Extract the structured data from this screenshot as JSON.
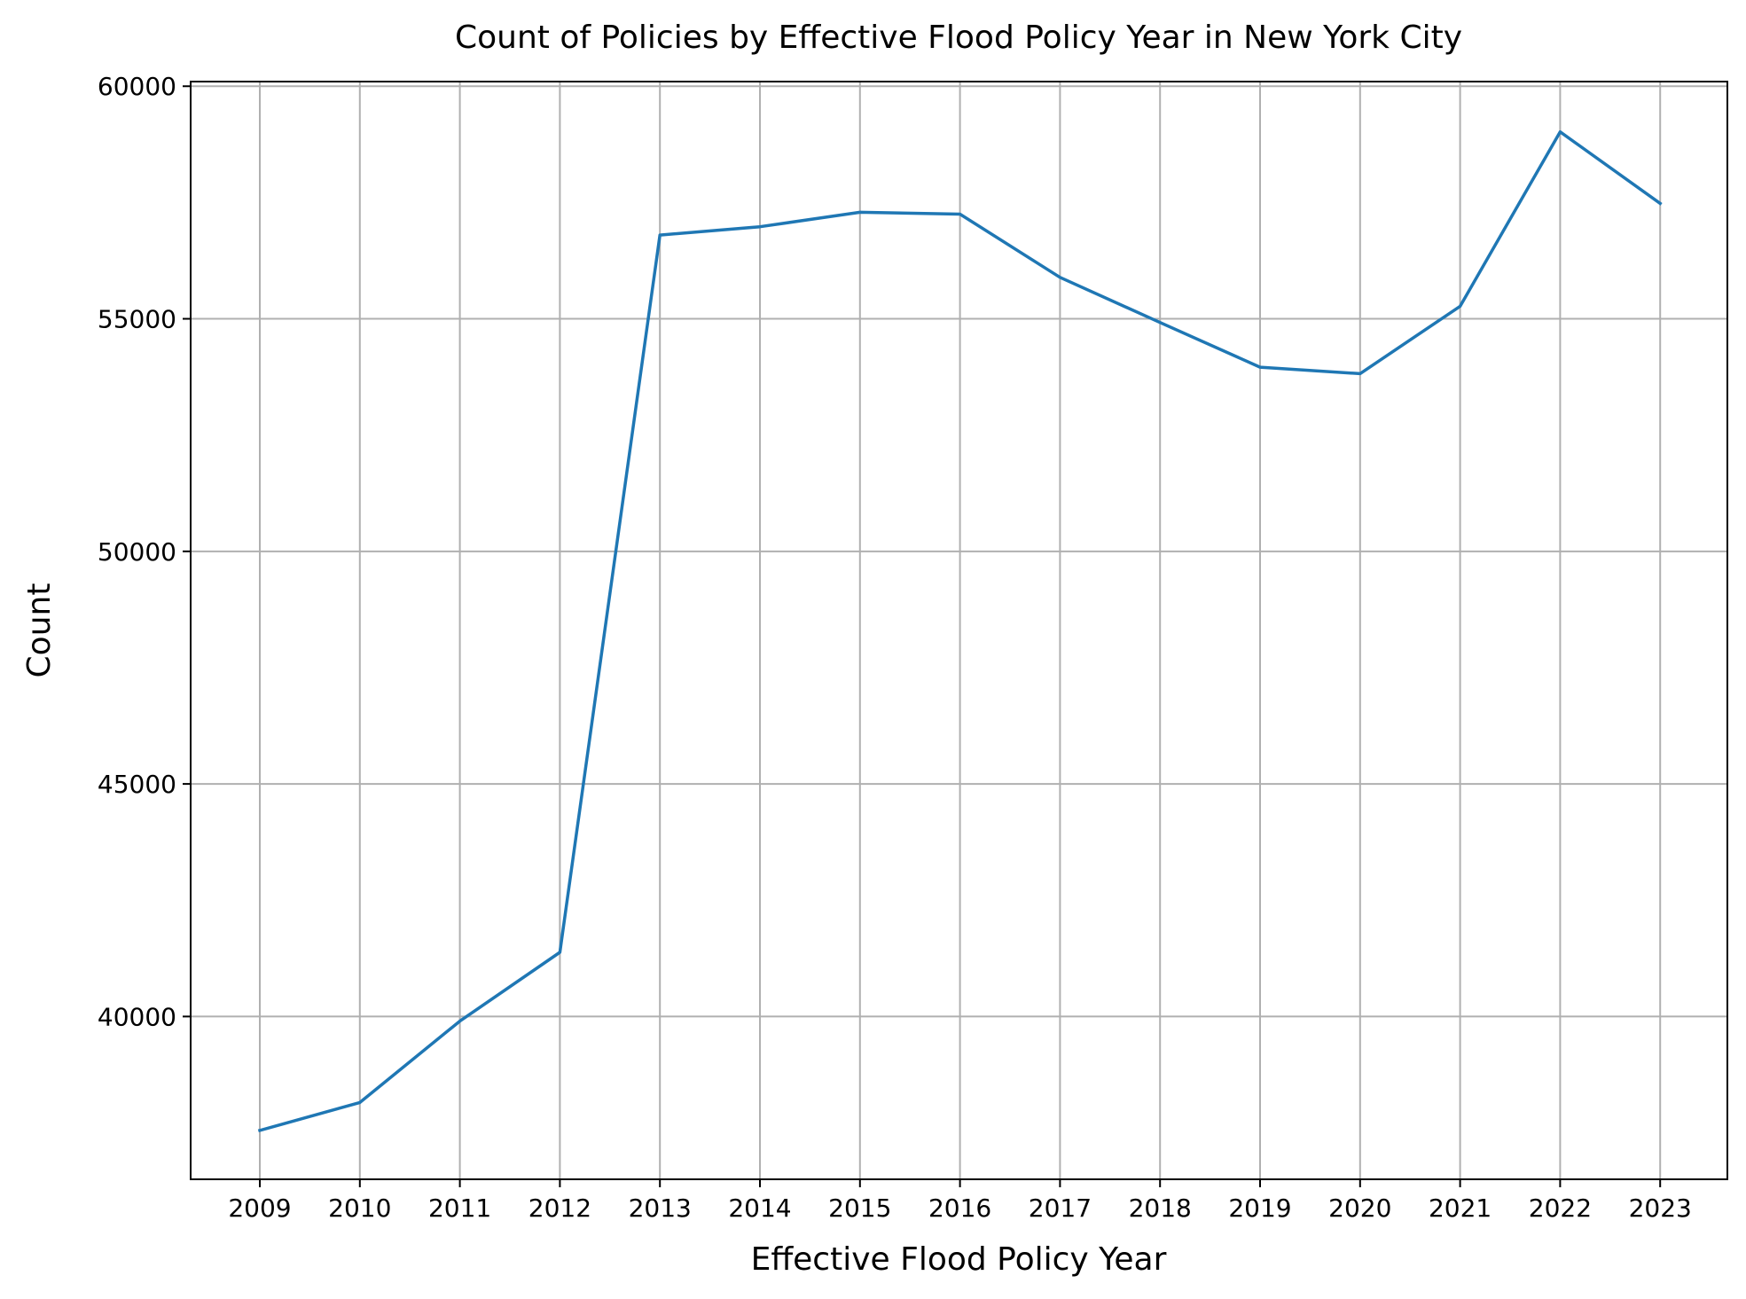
{
  "chart_data": {
    "type": "line",
    "title": "Count of Policies by Effective Flood Policy Year in New York City",
    "xlabel": "Effective Flood Policy Year",
    "ylabel": "Count",
    "x": [
      "2009",
      "2010",
      "2011",
      "2012",
      "2013",
      "2014",
      "2015",
      "2016",
      "2017",
      "2018",
      "2019",
      "2020",
      "2021",
      "2022",
      "2023"
    ],
    "series": [
      {
        "values": [
          37550,
          38150,
          39900,
          41380,
          56800,
          56980,
          57290,
          57250,
          55890,
          54920,
          53960,
          53820,
          55270,
          59020,
          57480
        ],
        "color": "#1f77b4"
      }
    ],
    "yticks": [
      "40000",
      "45000",
      "50000",
      "55000",
      "60000"
    ],
    "ylim": [
      36500,
      60100
    ],
    "grid": true,
    "legend": "none"
  }
}
